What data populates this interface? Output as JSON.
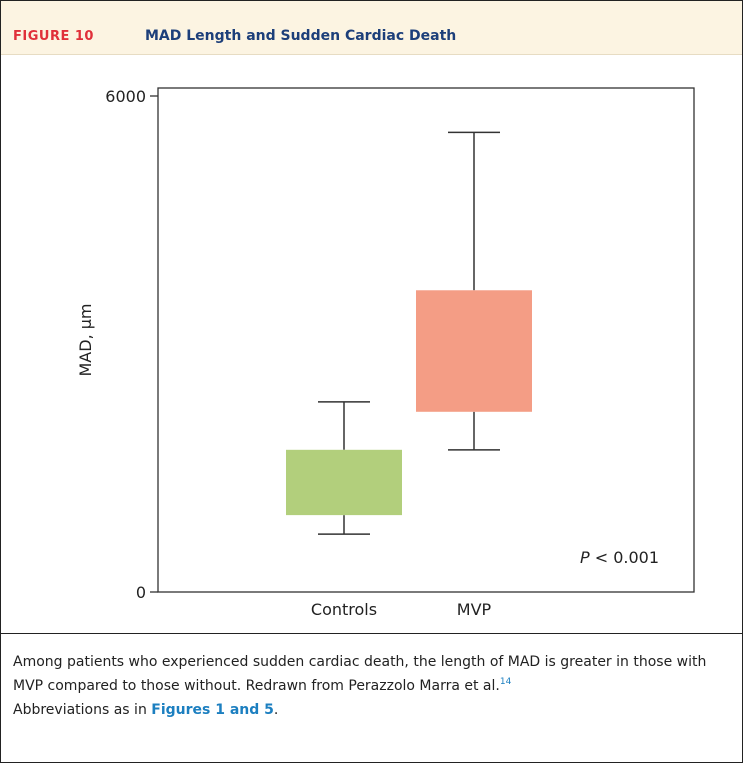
{
  "header": {
    "figure_label": "FIGURE 10",
    "title": "MAD Length and Sudden Cardiac Death"
  },
  "colors": {
    "header_bg": "#fcf4e2",
    "label_red": "#e0303a",
    "title_blue": "#1d3f7a",
    "controls_box": "#b2cf7c",
    "mvp_box": "#f49d85",
    "link_blue": "#1c7fc0"
  },
  "chart_data": {
    "type": "box",
    "title": "",
    "xlabel": "",
    "ylabel": "MAD, µm",
    "ylim": [
      0,
      6000
    ],
    "y_ticks": [
      0,
      6000
    ],
    "grid": false,
    "categories": [
      "Controls",
      "MVP"
    ],
    "series": [
      {
        "category": "Controls",
        "whisker_low": 700,
        "q1": 930,
        "q3": 1720,
        "whisker_high": 2300,
        "color": "#b2cf7c"
      },
      {
        "category": "MVP",
        "whisker_low": 1720,
        "q1": 2180,
        "q3": 3650,
        "whisker_high": 5560,
        "color": "#f49d85"
      }
    ],
    "annotation": {
      "p_italic": "P",
      "p_rest": " < 0.001"
    }
  },
  "caption": {
    "text1": "Among patients who experienced sudden cardiac death, the length of MAD is greater in those with MVP compared to those without. Redrawn from Perazzolo Marra et al.",
    "ref": "14",
    "text2": "Abbreviations as in ",
    "link": "Figures 1 and 5",
    "text3": "."
  }
}
